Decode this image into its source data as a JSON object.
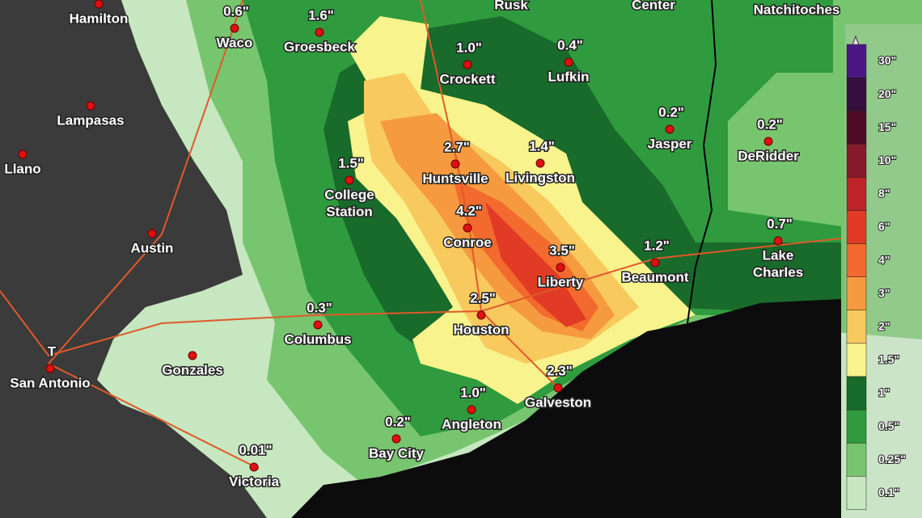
{
  "cities": [
    {
      "lines": [
        "Hamilton"
      ]
    },
    {
      "amount": "0.6\"",
      "lines": [
        "Waco"
      ]
    },
    {
      "amount": "1.6\"",
      "lines": [
        "Groesbeck"
      ]
    },
    {
      "lines": [
        "Rusk"
      ]
    },
    {
      "lines": [
        "Center"
      ]
    },
    {
      "lines": [
        "Natchitoches"
      ]
    },
    {
      "amount": "1.0\"",
      "lines": [
        "Crockett"
      ]
    },
    {
      "amount": "0.4\"",
      "lines": [
        "Lufkin"
      ]
    },
    {
      "lines": [
        "Lampasas"
      ]
    },
    {
      "amount": "0.2\"",
      "lines": [
        "Jasper"
      ]
    },
    {
      "amount": "0.2\"",
      "lines": [
        "DeRidder"
      ]
    },
    {
      "lines": [
        "Llano"
      ]
    },
    {
      "amount": "2.7\"",
      "lines": [
        "Huntsville"
      ]
    },
    {
      "amount": "1.4\"",
      "lines": [
        "Livingston"
      ]
    },
    {
      "amount": "1.5\"",
      "lines": [
        "College",
        "Station"
      ]
    },
    {
      "amount": "4.2\"",
      "lines": [
        "Conroe"
      ]
    },
    {
      "lines": [
        "Austin"
      ]
    },
    {
      "amount": "0.7\"",
      "lines": [
        "Lake",
        "Charles"
      ]
    },
    {
      "amount": "3.5\"",
      "lines": [
        "Liberty"
      ]
    },
    {
      "amount": "1.2\"",
      "lines": [
        "Beaumont"
      ]
    },
    {
      "amount": "0.3\"",
      "lines": [
        "Columbus"
      ]
    },
    {
      "amount": "2.5\"",
      "lines": [
        "Houston"
      ]
    },
    {
      "lines": [
        "Gonzales"
      ]
    },
    {
      "amount": "T",
      "lines": [
        "San Antonio"
      ]
    },
    {
      "amount": "2.3\"",
      "lines": [
        "Galveston"
      ]
    },
    {
      "amount": "1.0\"",
      "lines": [
        "Angleton"
      ]
    },
    {
      "amount": "0.2\"",
      "lines": [
        "Bay City"
      ]
    },
    {
      "amount": "0.01\"",
      "lines": [
        "Victoria"
      ]
    }
  ],
  "legend": [
    {
      "label": "30\"",
      "color": "#4a1782"
    },
    {
      "label": "20\"",
      "color": "#35103f"
    },
    {
      "label": "15\"",
      "color": "#4d0b24"
    },
    {
      "label": "10\"",
      "color": "#861a2c"
    },
    {
      "label": "8\"",
      "color": "#bd2329"
    },
    {
      "label": "6\"",
      "color": "#e23b25"
    },
    {
      "label": "4\"",
      "color": "#f26a2d"
    },
    {
      "label": "3\"",
      "color": "#f59a3e"
    },
    {
      "label": "2\"",
      "color": "#f8c95d"
    },
    {
      "label": "1.5\"",
      "color": "#f8f38c"
    },
    {
      "label": "1\"",
      "color": "#186b2b"
    },
    {
      "label": "0.5\"",
      "color": "#2f9b3e"
    },
    {
      "label": "0.25\"",
      "color": "#78c56f"
    },
    {
      "label": "0.1\"",
      "color": "#c6e7c0"
    }
  ]
}
